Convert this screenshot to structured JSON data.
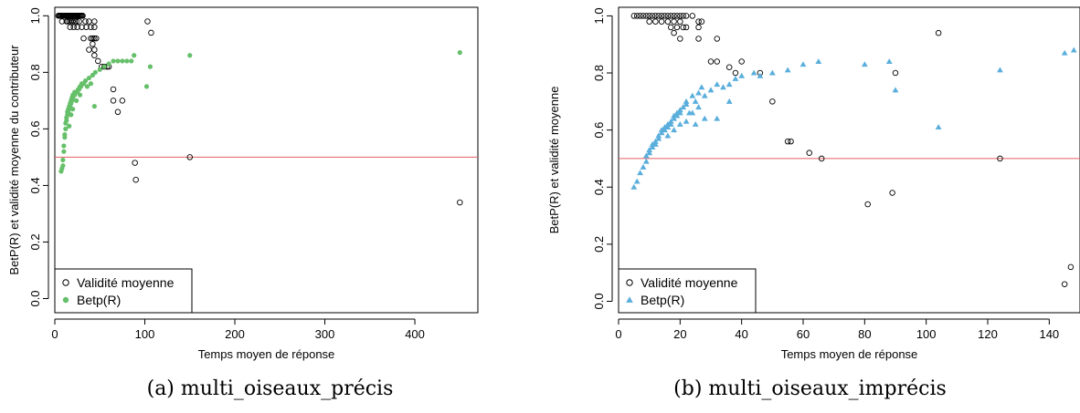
{
  "colors": {
    "validity": "#000000",
    "betp": "#66c06a",
    "betp_b": "#5aaedc",
    "refline": "#e06060"
  },
  "chart_data": [
    {
      "type": "scatter",
      "caption": "(a) multi_oiseaux_précis",
      "xlabel": "Temps moyen de réponse",
      "ylabel": "BetP(R) et validité moyenne du contributeur",
      "xlim": [
        0,
        470
      ],
      "ylim": [
        -0.05,
        1.03
      ],
      "xticks": [
        0,
        100,
        200,
        300,
        400
      ],
      "yticks": [
        0.0,
        0.2,
        0.4,
        0.6,
        0.8,
        1.0
      ],
      "yticklabels": [
        "0.0",
        "0.2",
        "0.4",
        "0.6",
        "0.8",
        "1.0"
      ],
      "hline": 0.5,
      "legend_position": "bottom-left",
      "series": [
        {
          "name": "Validité moyenne",
          "marker": "open-circle",
          "points": [
            [
              4,
              1.0
            ],
            [
              5,
              1.0
            ],
            [
              6,
              1.0
            ],
            [
              7,
              1.0
            ],
            [
              8,
              1.0
            ],
            [
              9,
              1.0
            ],
            [
              10,
              1.0
            ],
            [
              11,
              1.0
            ],
            [
              12,
              1.0
            ],
            [
              13,
              1.0
            ],
            [
              14,
              1.0
            ],
            [
              15,
              1.0
            ],
            [
              16,
              1.0
            ],
            [
              17,
              1.0
            ],
            [
              18,
              1.0
            ],
            [
              19,
              1.0
            ],
            [
              20,
              1.0
            ],
            [
              21,
              1.0
            ],
            [
              22,
              1.0
            ],
            [
              23,
              1.0
            ],
            [
              24,
              1.0
            ],
            [
              25,
              1.0
            ],
            [
              26,
              1.0
            ],
            [
              27,
              1.0
            ],
            [
              28,
              1.0
            ],
            [
              29,
              1.0
            ],
            [
              30,
              1.0
            ],
            [
              31,
              1.0
            ],
            [
              8,
              0.98
            ],
            [
              13,
              0.98
            ],
            [
              16,
              0.98
            ],
            [
              18,
              0.98
            ],
            [
              20,
              0.98
            ],
            [
              22,
              0.98
            ],
            [
              24,
              0.98
            ],
            [
              27,
              0.98
            ],
            [
              34,
              0.98
            ],
            [
              38,
              0.98
            ],
            [
              44,
              0.98
            ],
            [
              17,
              0.96
            ],
            [
              21,
              0.96
            ],
            [
              25,
              0.96
            ],
            [
              30,
              0.96
            ],
            [
              35,
              0.96
            ],
            [
              40,
              0.96
            ],
            [
              44,
              0.96
            ],
            [
              14,
              0.98
            ],
            [
              32,
              0.92
            ],
            [
              40,
              0.92
            ],
            [
              42,
              0.92
            ],
            [
              44,
              0.92
            ],
            [
              46,
              0.92
            ],
            [
              38,
              0.88
            ],
            [
              44,
              0.88
            ],
            [
              42,
              0.9
            ],
            [
              44,
              0.86
            ],
            [
              48,
              0.84
            ],
            [
              52,
              0.82
            ],
            [
              55,
              0.82
            ],
            [
              58,
              0.82
            ],
            [
              60,
              0.82
            ],
            [
              65,
              0.74
            ],
            [
              65,
              0.7
            ],
            [
              75,
              0.7
            ],
            [
              70,
              0.66
            ],
            [
              103,
              0.98
            ],
            [
              107,
              0.94
            ],
            [
              89,
              0.48
            ],
            [
              90,
              0.42
            ],
            [
              150,
              0.5
            ],
            [
              450,
              0.34
            ]
          ]
        },
        {
          "name": "Betp(R)",
          "marker": "filled-circle",
          "points": [
            [
              7,
              0.45
            ],
            [
              8,
              0.46
            ],
            [
              9,
              0.47
            ],
            [
              9,
              0.49
            ],
            [
              10,
              0.52
            ],
            [
              10,
              0.54
            ],
            [
              11,
              0.57
            ],
            [
              11,
              0.58
            ],
            [
              12,
              0.6
            ],
            [
              12,
              0.62
            ],
            [
              13,
              0.63
            ],
            [
              13,
              0.64
            ],
            [
              14,
              0.65
            ],
            [
              14,
              0.66
            ],
            [
              15,
              0.66
            ],
            [
              15,
              0.67
            ],
            [
              16,
              0.67
            ],
            [
              16,
              0.68
            ],
            [
              17,
              0.68
            ],
            [
              17,
              0.69
            ],
            [
              18,
              0.69
            ],
            [
              18,
              0.7
            ],
            [
              19,
              0.7
            ],
            [
              19,
              0.71
            ],
            [
              20,
              0.71
            ],
            [
              20,
              0.72
            ],
            [
              21,
              0.72
            ],
            [
              22,
              0.72
            ],
            [
              22,
              0.73
            ],
            [
              23,
              0.73
            ],
            [
              24,
              0.73
            ],
            [
              25,
              0.73
            ],
            [
              26,
              0.74
            ],
            [
              27,
              0.74
            ],
            [
              28,
              0.75
            ],
            [
              29,
              0.75
            ],
            [
              30,
              0.76
            ],
            [
              32,
              0.76
            ],
            [
              34,
              0.77
            ],
            [
              36,
              0.75
            ],
            [
              38,
              0.78
            ],
            [
              40,
              0.76
            ],
            [
              42,
              0.79
            ],
            [
              44,
              0.68
            ],
            [
              45,
              0.8
            ],
            [
              50,
              0.81
            ],
            [
              55,
              0.82
            ],
            [
              60,
              0.83
            ],
            [
              65,
              0.84
            ],
            [
              70,
              0.84
            ],
            [
              75,
              0.84
            ],
            [
              80,
              0.84
            ],
            [
              85,
              0.84
            ],
            [
              88,
              0.86
            ],
            [
              102,
              0.75
            ],
            [
              106,
              0.82
            ],
            [
              150,
              0.86
            ],
            [
              450,
              0.87
            ],
            [
              16,
              0.61
            ],
            [
              18,
              0.65
            ],
            [
              20,
              0.67
            ],
            [
              24,
              0.7
            ],
            [
              28,
              0.72
            ]
          ]
        }
      ]
    },
    {
      "type": "scatter",
      "caption": "(b) multi_oiseaux_imprécis",
      "xlabel": "Temps moyen de réponse",
      "ylabel": "BetP(R) et validité moyenne",
      "xlim": [
        0,
        150
      ],
      "ylim": [
        -0.04,
        1.03
      ],
      "xticks": [
        0,
        20,
        40,
        60,
        80,
        100,
        120,
        140
      ],
      "yticks": [
        0.0,
        0.2,
        0.4,
        0.6,
        0.8,
        1.0
      ],
      "yticklabels": [
        "0.0",
        "0.2",
        "0.4",
        "0.6",
        "0.8",
        "1.0"
      ],
      "hline": 0.5,
      "legend_position": "bottom-left",
      "series": [
        {
          "name": "Validité moyenne",
          "marker": "open-circle",
          "points": [
            [
              5,
              1.0
            ],
            [
              6,
              1.0
            ],
            [
              7,
              1.0
            ],
            [
              8,
              1.0
            ],
            [
              9,
              1.0
            ],
            [
              10,
              1.0
            ],
            [
              11,
              1.0
            ],
            [
              12,
              1.0
            ],
            [
              13,
              1.0
            ],
            [
              14,
              1.0
            ],
            [
              15,
              1.0
            ],
            [
              16,
              1.0
            ],
            [
              17,
              1.0
            ],
            [
              18,
              1.0
            ],
            [
              19,
              1.0
            ],
            [
              20,
              1.0
            ],
            [
              21,
              1.0
            ],
            [
              22,
              1.0
            ],
            [
              24,
              1.0
            ],
            [
              10,
              0.98
            ],
            [
              12,
              0.98
            ],
            [
              14,
              0.98
            ],
            [
              16,
              0.98
            ],
            [
              18,
              0.98
            ],
            [
              20,
              0.98
            ],
            [
              26,
              0.98
            ],
            [
              27,
              0.98
            ],
            [
              17,
              0.96
            ],
            [
              19,
              0.96
            ],
            [
              21,
              0.96
            ],
            [
              18,
              0.94
            ],
            [
              22,
              0.96
            ],
            [
              26,
              0.96
            ],
            [
              20,
              0.92
            ],
            [
              26,
              0.92
            ],
            [
              32,
              0.92
            ],
            [
              30,
              0.84
            ],
            [
              32,
              0.84
            ],
            [
              36,
              0.82
            ],
            [
              38,
              0.8
            ],
            [
              40,
              0.84
            ],
            [
              46,
              0.8
            ],
            [
              50,
              0.7
            ],
            [
              55,
              0.56
            ],
            [
              56,
              0.56
            ],
            [
              62,
              0.52
            ],
            [
              66,
              0.5
            ],
            [
              81,
              0.34
            ],
            [
              89,
              0.38
            ],
            [
              90,
              0.8
            ],
            [
              104,
              0.94
            ],
            [
              124,
              0.5
            ],
            [
              145,
              0.06
            ],
            [
              147,
              0.12
            ]
          ]
        },
        {
          "name": "Betp(R)",
          "marker": "filled-triangle",
          "points": [
            [
              5,
              0.4
            ],
            [
              6,
              0.42
            ],
            [
              7,
              0.45
            ],
            [
              8,
              0.47
            ],
            [
              9,
              0.49
            ],
            [
              9,
              0.51
            ],
            [
              10,
              0.52
            ],
            [
              10,
              0.53
            ],
            [
              11,
              0.54
            ],
            [
              11,
              0.55
            ],
            [
              12,
              0.55
            ],
            [
              12,
              0.56
            ],
            [
              13,
              0.57
            ],
            [
              13,
              0.58
            ],
            [
              14,
              0.59
            ],
            [
              14,
              0.6
            ],
            [
              15,
              0.6
            ],
            [
              15,
              0.61
            ],
            [
              16,
              0.61
            ],
            [
              16,
              0.62
            ],
            [
              17,
              0.62
            ],
            [
              17,
              0.63
            ],
            [
              18,
              0.64
            ],
            [
              18,
              0.65
            ],
            [
              19,
              0.65
            ],
            [
              19,
              0.66
            ],
            [
              20,
              0.66
            ],
            [
              20,
              0.67
            ],
            [
              21,
              0.68
            ],
            [
              22,
              0.69
            ],
            [
              22,
              0.7
            ],
            [
              23,
              0.66
            ],
            [
              24,
              0.72
            ],
            [
              25,
              0.7
            ],
            [
              26,
              0.73
            ],
            [
              27,
              0.75
            ],
            [
              28,
              0.72
            ],
            [
              30,
              0.74
            ],
            [
              32,
              0.76
            ],
            [
              34,
              0.75
            ],
            [
              36,
              0.76
            ],
            [
              38,
              0.78
            ],
            [
              40,
              0.79
            ],
            [
              44,
              0.8
            ],
            [
              46,
              0.79
            ],
            [
              50,
              0.8
            ],
            [
              55,
              0.81
            ],
            [
              60,
              0.83
            ],
            [
              65,
              0.84
            ],
            [
              80,
              0.83
            ],
            [
              88,
              0.84
            ],
            [
              90,
              0.74
            ],
            [
              104,
              0.61
            ],
            [
              124,
              0.81
            ],
            [
              145,
              0.87
            ],
            [
              148,
              0.88
            ],
            [
              25,
              0.62
            ],
            [
              28,
              0.64
            ],
            [
              32,
              0.64
            ],
            [
              36,
              0.7
            ],
            [
              16,
              0.58
            ],
            [
              18,
              0.6
            ],
            [
              20,
              0.62
            ],
            [
              24,
              0.66
            ],
            [
              22,
              0.63
            ],
            [
              26,
              0.68
            ]
          ]
        }
      ]
    }
  ]
}
